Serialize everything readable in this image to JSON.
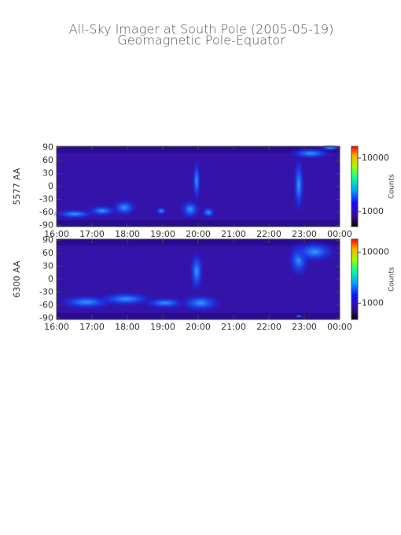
{
  "figure": {
    "title": "All-Sky Imager at South Pole (2005-05-19)",
    "subtitle": "Geomagnetic Pole-Equator"
  },
  "chart_data": [
    {
      "type": "heatmap",
      "ylabel": "5577 AA",
      "xlim": [
        16,
        24
      ],
      "xticks": [
        {
          "value": 16,
          "label": "16:00"
        },
        {
          "value": 17,
          "label": "17:00"
        },
        {
          "value": 18,
          "label": "18:00"
        },
        {
          "value": 19,
          "label": "19:00"
        },
        {
          "value": 20,
          "label": "20:00"
        },
        {
          "value": 21,
          "label": "21:00"
        },
        {
          "value": 22,
          "label": "22:00"
        },
        {
          "value": 23,
          "label": "23:00"
        },
        {
          "value": 24,
          "label": "00:00"
        }
      ],
      "ylim": [
        -93,
        93
      ],
      "yticks": [
        90,
        60,
        30,
        0,
        -30,
        -60,
        -90
      ],
      "colorbar": {
        "label": "Counts",
        "log": true,
        "lim": [
          525,
          16600
        ],
        "ticks": [
          10000,
          1000
        ]
      }
    },
    {
      "type": "heatmap",
      "ylabel": "6300 AA",
      "xlim": [
        16,
        24
      ],
      "xticks": [
        {
          "value": 16,
          "label": "16:00"
        },
        {
          "value": 17,
          "label": "17:00"
        },
        {
          "value": 18,
          "label": "18:00"
        },
        {
          "value": 19,
          "label": "19:00"
        },
        {
          "value": 20,
          "label": "20:00"
        },
        {
          "value": 21,
          "label": "21:00"
        },
        {
          "value": 22,
          "label": "22:00"
        },
        {
          "value": 23,
          "label": "23:00"
        },
        {
          "value": 24,
          "label": "00:00"
        }
      ],
      "ylim": [
        -93,
        93
      ],
      "yticks": [
        90,
        60,
        30,
        0,
        -30,
        -60,
        -90
      ],
      "colorbar": {
        "label": "Counts",
        "log": true,
        "lim": [
          480,
          18000
        ],
        "ticks": [
          10000,
          1000
        ]
      }
    }
  ]
}
